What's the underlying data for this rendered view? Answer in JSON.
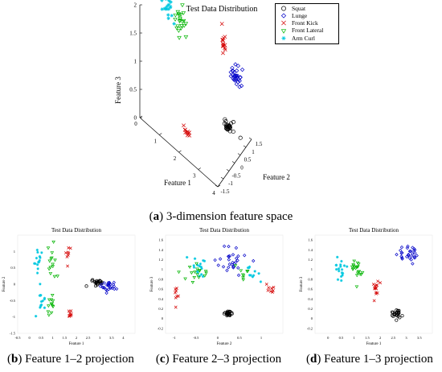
{
  "legend": {
    "entries": [
      {
        "name": "Squat",
        "marker": "circle",
        "color": "#000000"
      },
      {
        "name": "Lunge",
        "marker": "diamond",
        "color": "#0000c8"
      },
      {
        "name": "Front Kick",
        "marker": "x",
        "color": "#d40000"
      },
      {
        "name": "Front Lateral",
        "marker": "triangle-down",
        "color": "#00b400"
      },
      {
        "name": "Arm Curl",
        "marker": "star",
        "color": "#00c8e0"
      }
    ]
  },
  "captions": {
    "a_label": "a",
    "a_text": " 3-dimension feature space",
    "b_label": "b",
    "b_text": " Feature 1–2 projection",
    "c_label": "c",
    "c_text": " Feature 2–3 projection",
    "d_label": "d",
    "d_text": " Feature 1–3 projection"
  },
  "chart_data": [
    {
      "type": "scatter",
      "projection": "3d",
      "title": "Test Data Distribution",
      "xlabel": "Feature 1",
      "ylabel": "Feature 2",
      "zlabel": "Feature 3",
      "xlim": [
        0,
        4
      ],
      "ylim": [
        -1.5,
        1.5
      ],
      "zlim": [
        0,
        2
      ],
      "xticks": [
        "0",
        "1",
        "2",
        "3",
        "4"
      ],
      "yticks": [
        "-1.5",
        "-1",
        "-0.5",
        "0",
        "0.5",
        "1",
        "1.5"
      ],
      "zticks": [
        "0",
        "0.5",
        "1",
        "1.5",
        "2"
      ],
      "clusters": [
        {
          "series": "Squat",
          "center": [
            3.0,
            1.2,
            0.0
          ],
          "spread": [
            0.25,
            0.15,
            0.06
          ],
          "n": 26
        },
        {
          "series": "Lunge",
          "center": [
            3.3,
            1.3,
            0.95
          ],
          "spread": [
            0.25,
            0.15,
            0.12
          ],
          "n": 30
        },
        {
          "series": "Front Kick",
          "center": [
            2.7,
            1.2,
            1.45
          ],
          "spread": [
            0.15,
            0.1,
            0.2
          ],
          "n": 14
        },
        {
          "series": "Front Kick",
          "center": [
            1.9,
            -0.7,
            0.1
          ],
          "spread": [
            0.15,
            0.1,
            0.1
          ],
          "n": 10
        },
        {
          "series": "Front Lateral",
          "center": [
            0.8,
            0.8,
            1.35
          ],
          "spread": [
            0.3,
            0.3,
            0.2
          ],
          "n": 22
        },
        {
          "series": "Arm Curl",
          "center": [
            0.2,
            0.5,
            1.5
          ],
          "spread": [
            0.3,
            0.3,
            0.25
          ],
          "n": 22
        }
      ]
    },
    {
      "type": "scatter",
      "title": "Test Data Distribution",
      "xlabel": "Feature 1",
      "ylabel": "Feature 2",
      "xlim": [
        -0.5,
        4.5
      ],
      "ylim": [
        -1.5,
        1.5
      ],
      "xticks": [
        "-0.5",
        "0",
        "0.5",
        "1",
        "1.5",
        "2",
        "2.5",
        "3",
        "3.5",
        "4"
      ],
      "yticks": [
        "-1.5",
        "-1",
        "-0.5",
        "0",
        "0.5",
        "1"
      ],
      "clusters": [
        {
          "series": "Arm Curl",
          "center": [
            0.4,
            0.75
          ],
          "spread": [
            0.15,
            0.3
          ],
          "n": 14
        },
        {
          "series": "Arm Curl",
          "center": [
            0.5,
            -0.4
          ],
          "spread": [
            0.15,
            0.3
          ],
          "n": 14
        },
        {
          "series": "Front Lateral",
          "center": [
            1.0,
            0.7
          ],
          "spread": [
            0.2,
            0.35
          ],
          "n": 14
        },
        {
          "series": "Front Lateral",
          "center": [
            0.9,
            -0.6
          ],
          "spread": [
            0.15,
            0.3
          ],
          "n": 12
        },
        {
          "series": "Front Kick",
          "center": [
            1.65,
            0.9
          ],
          "spread": [
            0.1,
            0.3
          ],
          "n": 8
        },
        {
          "series": "Front Kick",
          "center": [
            1.75,
            -0.95
          ],
          "spread": [
            0.1,
            0.2
          ],
          "n": 8
        },
        {
          "series": "Squat",
          "center": [
            2.9,
            0.05
          ],
          "spread": [
            0.2,
            0.08
          ],
          "n": 22
        },
        {
          "series": "Lunge",
          "center": [
            3.4,
            -0.05
          ],
          "spread": [
            0.35,
            0.15
          ],
          "n": 26
        }
      ]
    },
    {
      "type": "scatter",
      "title": "Test Data Distribution",
      "xlabel": "Feature 2",
      "ylabel": "Feature 3",
      "xlim": [
        -1.2,
        1.5
      ],
      "ylim": [
        -0.3,
        1.7
      ],
      "xticks": [
        "-1",
        "-0.5",
        "0",
        "0.5",
        "1"
      ],
      "yticks": [
        "-0.2",
        "0",
        "0.2",
        "0.4",
        "0.6",
        "0.8",
        "1",
        "1.2",
        "1.4",
        "1.6"
      ],
      "clusters": [
        {
          "series": "Lunge",
          "center": [
            0.3,
            1.2
          ],
          "spread": [
            0.3,
            0.25
          ],
          "n": 28
        },
        {
          "series": "Arm Curl",
          "center": [
            -0.4,
            1.0
          ],
          "spread": [
            0.3,
            0.2
          ],
          "n": 16
        },
        {
          "series": "Arm Curl",
          "center": [
            0.8,
            0.9
          ],
          "spread": [
            0.2,
            0.15
          ],
          "n": 10
        },
        {
          "series": "Front Lateral",
          "center": [
            -0.5,
            0.9
          ],
          "spread": [
            0.3,
            0.2
          ],
          "n": 16
        },
        {
          "series": "Front Lateral",
          "center": [
            0.6,
            0.95
          ],
          "spread": [
            0.2,
            0.15
          ],
          "n": 8
        },
        {
          "series": "Front Kick",
          "center": [
            -0.95,
            0.5
          ],
          "spread": [
            0.12,
            0.12
          ],
          "n": 8
        },
        {
          "series": "Front Kick",
          "center": [
            1.2,
            0.6
          ],
          "spread": [
            0.12,
            0.12
          ],
          "n": 8
        },
        {
          "series": "Squat",
          "center": [
            0.25,
            0.1
          ],
          "spread": [
            0.08,
            0.08
          ],
          "n": 24
        }
      ]
    },
    {
      "type": "scatter",
      "title": "Test Data Distribution",
      "xlabel": "Feature 1",
      "ylabel": "Feature 3",
      "xlim": [
        -0.5,
        4
      ],
      "ylim": [
        -0.3,
        1.7
      ],
      "xticks": [
        "0",
        "0.5",
        "1",
        "1.5",
        "2",
        "2.5",
        "3",
        "3.5"
      ],
      "yticks": [
        "-0.2",
        "0",
        "0.2",
        "0.4",
        "0.6",
        "0.8",
        "1",
        "1.2",
        "1.4",
        "1.6"
      ],
      "clusters": [
        {
          "series": "Arm Curl",
          "center": [
            0.5,
            1.0
          ],
          "spread": [
            0.2,
            0.2
          ],
          "n": 18
        },
        {
          "series": "Front Lateral",
          "center": [
            1.1,
            1.0
          ],
          "spread": [
            0.2,
            0.2
          ],
          "n": 20
        },
        {
          "series": "Front Kick",
          "center": [
            1.85,
            0.6
          ],
          "spread": [
            0.15,
            0.2
          ],
          "n": 14
        },
        {
          "series": "Lunge",
          "center": [
            3.1,
            1.3
          ],
          "spread": [
            0.35,
            0.2
          ],
          "n": 28
        },
        {
          "series": "Squat",
          "center": [
            2.6,
            0.1
          ],
          "spread": [
            0.2,
            0.1
          ],
          "n": 24
        }
      ]
    }
  ]
}
